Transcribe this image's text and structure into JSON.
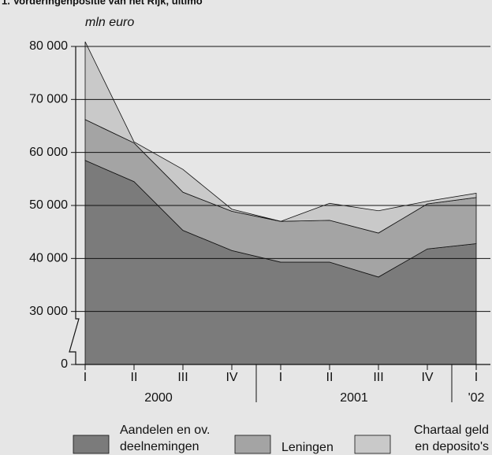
{
  "chart_data": {
    "type": "stacked-area",
    "title": "1. Vorderingenpositie van het Rijk, ultimo",
    "y_label": "mln euro",
    "categories": [
      "I",
      "II",
      "III",
      "IV",
      "I",
      "II",
      "III",
      "IV",
      "I"
    ],
    "groups": [
      {
        "label": "2000",
        "size": 4
      },
      {
        "label": "2001",
        "size": 4
      },
      {
        "label": "'02",
        "size": 1
      }
    ],
    "series": [
      {
        "name": "Aandelen en ov.\ndeelnemingen",
        "color": "#7b7b7b",
        "values": [
          58500,
          54500,
          45300,
          41500,
          39300,
          39300,
          36500,
          41800,
          42800
        ]
      },
      {
        "name": "Leningen",
        "color": "#a4a4a4",
        "values": [
          7700,
          7300,
          7200,
          7400,
          7700,
          7900,
          8300,
          8500,
          8700
        ]
      },
      {
        "name": "Chartaal geld\nen deposito's",
        "color": "#c9c9c9",
        "values": [
          14700,
          200,
          4300,
          400,
          0,
          3200,
          4200,
          500,
          800
        ]
      }
    ],
    "ylim": [
      0,
      80000
    ],
    "yticks": [
      {
        "value": 0,
        "label": "0"
      },
      {
        "value": 30000,
        "label": "30 000"
      },
      {
        "value": 40000,
        "label": "40 000"
      },
      {
        "value": 50000,
        "label": "50 000"
      },
      {
        "value": 60000,
        "label": "60 000"
      },
      {
        "value": 70000,
        "label": "70 000"
      },
      {
        "value": 80000,
        "label": "80 000"
      }
    ],
    "axis_break": true,
    "grid": true
  }
}
